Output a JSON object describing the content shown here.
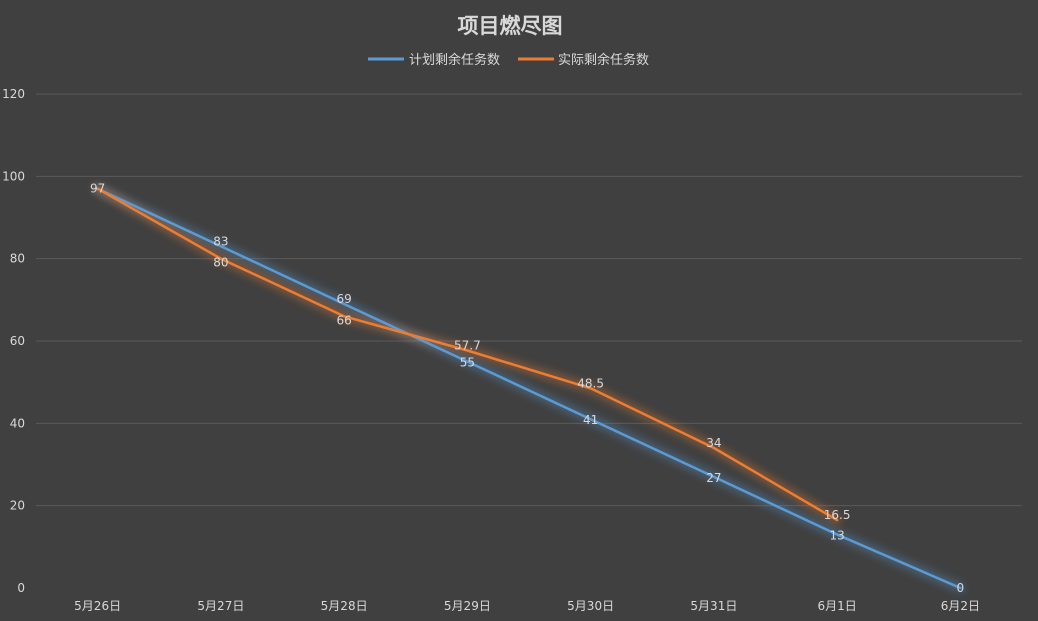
{
  "chart_data": {
    "type": "line",
    "title": "项目燃尽图",
    "categories": [
      "5月26日",
      "5月27日",
      "5月28日",
      "5月29日",
      "5月30日",
      "5月31日",
      "6月1日",
      "6月2日"
    ],
    "series": [
      {
        "name": "计划剩余任务数",
        "color": "#5b9bd5",
        "values": [
          97,
          83,
          69,
          55,
          41,
          27,
          13,
          0
        ],
        "labels": [
          "97",
          "83",
          "69",
          "55",
          "41",
          "27",
          "13",
          "0"
        ]
      },
      {
        "name": "实际剩余任务数",
        "color": "#ed7d31",
        "values": [
          97,
          80,
          66,
          57.7,
          48.5,
          34,
          16.5,
          null
        ],
        "labels": [
          "",
          "80",
          "66",
          "57.7",
          "48.5",
          "34",
          "16.5",
          ""
        ]
      }
    ],
    "ylim": [
      0,
      120
    ],
    "yticks": [
      0,
      20,
      40,
      60,
      80,
      100,
      120
    ],
    "xlabel": "",
    "ylabel": "",
    "grid": true,
    "legend_position": "top"
  }
}
